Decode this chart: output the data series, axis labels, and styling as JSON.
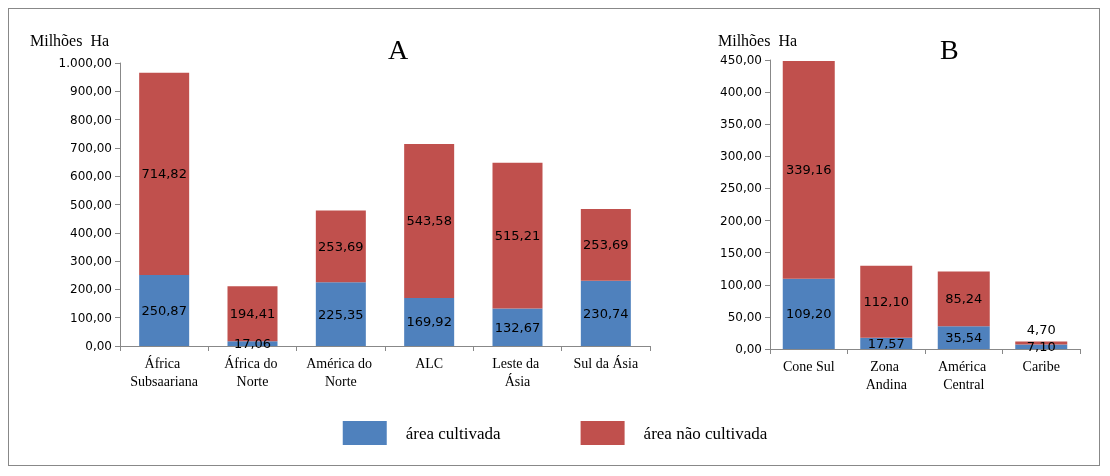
{
  "chart_data": [
    {
      "type": "bar",
      "title": "A",
      "ylabel": "Milhões Ha",
      "stacked": true,
      "legend": "bottom",
      "grid": false,
      "categories": [
        "África Subsaariana",
        "África do Norte",
        "América do Norte",
        "ALC",
        "Leste da Ásia",
        "Sul da Ásia"
      ],
      "series": [
        {
          "name": "área cultivada",
          "color": "#4f81bd",
          "values": [
            250.87,
            17.06,
            225.35,
            169.92,
            132.67,
            230.74
          ],
          "value_labels": [
            "250,87",
            "17,06",
            "225,35",
            "169,92",
            "132,67",
            "230,74"
          ]
        },
        {
          "name": "área não cultivada",
          "color": "#c0504d",
          "values": [
            714.82,
            194.41,
            253.69,
            543.58,
            515.21,
            253.69
          ],
          "value_labels": [
            "714,82",
            "194,41",
            "253,69",
            "543,58",
            "515,21",
            "253,69"
          ]
        }
      ],
      "ylim": [
        0,
        1000
      ],
      "yticks": [
        {
          "value": 0,
          "label": "0,00"
        },
        {
          "value": 100,
          "label": "100,00"
        },
        {
          "value": 200,
          "label": "200,00"
        },
        {
          "value": 300,
          "label": "300,00"
        },
        {
          "value": 400,
          "label": "400,00"
        },
        {
          "value": 500,
          "label": "500,00"
        },
        {
          "value": 600,
          "label": "600,00"
        },
        {
          "value": 700,
          "label": "700,00"
        },
        {
          "value": 800,
          "label": "800,00"
        },
        {
          "value": 900,
          "label": "900,00"
        },
        {
          "value": 1000,
          "label": "1.000,00"
        }
      ]
    },
    {
      "type": "bar",
      "title": "B",
      "ylabel": "Milhões Ha",
      "stacked": true,
      "grid": false,
      "categories": [
        "Cone Sul",
        "Zona Andina",
        "América Central",
        "Caribe"
      ],
      "series": [
        {
          "color": "#4f81bd",
          "values": [
            109.2,
            17.57,
            35.54,
            7.1
          ],
          "value_labels": [
            "109,20",
            "17,57",
            "35,54",
            "7,10"
          ]
        },
        {
          "color": "#c0504d",
          "values": [
            339.16,
            112.1,
            85.24,
            4.7
          ],
          "value_labels": [
            "339,16",
            "112,10",
            "85,24",
            "4,70"
          ]
        }
      ],
      "ylim": [
        0,
        450
      ],
      "yticks": [
        {
          "value": 0,
          "label": "0,00"
        },
        {
          "value": 50,
          "label": "50,00"
        },
        {
          "value": 100,
          "label": "100,00"
        },
        {
          "value": 150,
          "label": "150,00"
        },
        {
          "value": 200,
          "label": "200,00"
        },
        {
          "value": 250,
          "label": "250,00"
        },
        {
          "value": 300,
          "label": "300,00"
        },
        {
          "value": 350,
          "label": "350,00"
        },
        {
          "value": 400,
          "label": "400,00"
        },
        {
          "value": 450,
          "label": "450,00"
        }
      ]
    }
  ]
}
